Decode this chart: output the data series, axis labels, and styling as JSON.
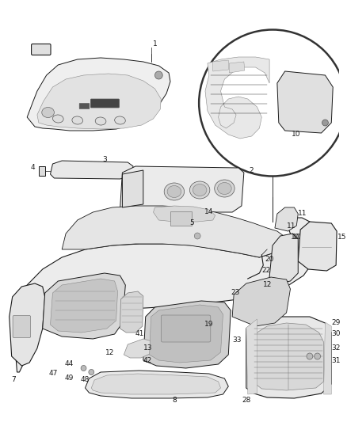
{
  "background_color": "#ffffff",
  "figsize": [
    4.38,
    5.33
  ],
  "dpi": 100,
  "line_color": "#1a1a1a",
  "fill_color": "#f8f8f8",
  "label_fontsize": 6.5,
  "label_color": "#1a1a1a"
}
